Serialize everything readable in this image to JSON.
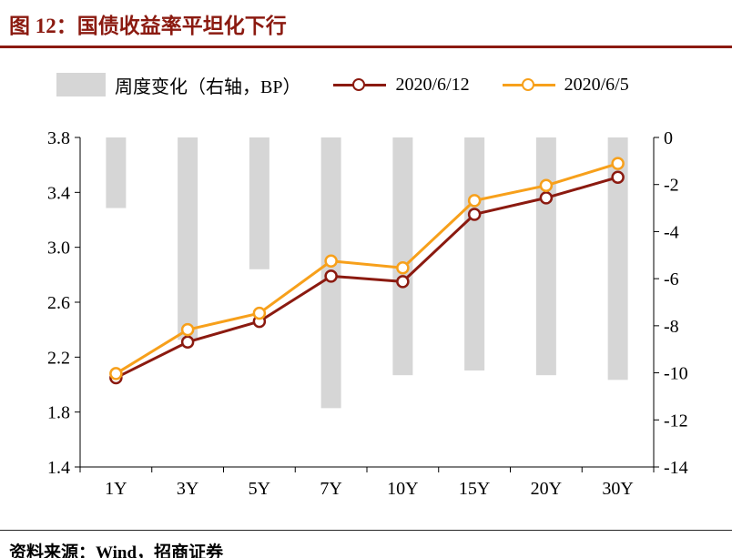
{
  "title": {
    "figure_label": "图 12：",
    "text": "国债收益率平坦化下行"
  },
  "footer": {
    "text": "资料来源：Wind，招商证券"
  },
  "colors": {
    "accent": "#8B1A10",
    "orange": "#F7A01B",
    "bar_gray": "#D6D6D6",
    "axis": "#000000"
  },
  "chart_data": {
    "type": "bar+line",
    "title": "国债收益率平坦化下行",
    "categories": [
      "1Y",
      "3Y",
      "5Y",
      "7Y",
      "10Y",
      "15Y",
      "20Y",
      "30Y"
    ],
    "series": [
      {
        "name": "周度变化（右轴，BP）",
        "type": "bar",
        "axis": "right",
        "color": "#D6D6D6",
        "values": [
          -3.0,
          -8.6,
          -5.6,
          -11.5,
          -10.1,
          -9.9,
          -10.1,
          -10.3
        ]
      },
      {
        "name": "2020/6/12",
        "type": "line",
        "axis": "left",
        "color": "#8B1A10",
        "values": [
          2.05,
          2.31,
          2.46,
          2.79,
          2.75,
          3.24,
          3.36,
          3.51
        ]
      },
      {
        "name": "2020/6/5",
        "type": "line",
        "axis": "left",
        "color": "#F7A01B",
        "values": [
          2.08,
          2.4,
          2.52,
          2.9,
          2.85,
          3.34,
          3.45,
          3.61
        ]
      }
    ],
    "left_axis": {
      "min": 1.4,
      "max": 3.8,
      "ticks": [
        3.8,
        3.4,
        3.0,
        2.6,
        2.2,
        1.8,
        1.4
      ],
      "decimals": 1
    },
    "right_axis": {
      "min": -14,
      "max": 0,
      "ticks": [
        0,
        -2,
        -4,
        -6,
        -8,
        -10,
        -12,
        -14
      ],
      "decimals": 0
    },
    "grid": false,
    "legend_position": "top"
  }
}
